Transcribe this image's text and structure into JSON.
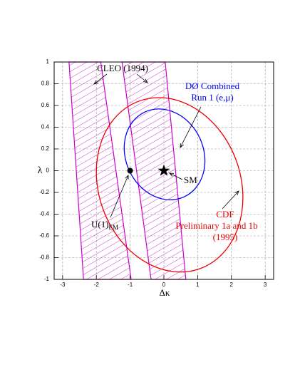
{
  "chart_data": {
    "type": "contour",
    "xlabel": "Δκ",
    "ylabel": "λ",
    "xlim": [
      -3.25,
      3.25
    ],
    "ylim": [
      -1,
      1
    ],
    "xticks": [
      -3,
      -2,
      -1,
      0,
      1,
      2,
      3
    ],
    "yticks": [
      -1,
      -0.8,
      -0.6,
      -0.4,
      -0.2,
      0,
      0.2,
      0.4,
      0.6,
      0.8,
      1
    ],
    "grid": true,
    "bands_label": "CLEO (1994)",
    "bands_color": "#cc00cc",
    "bands": [
      {
        "x_top": [
          -2.81,
          -1.87
        ],
        "x_bottom": [
          -2.38,
          -0.97
        ]
      },
      {
        "x_top": [
          -1.24,
          0.04
        ],
        "x_bottom": [
          -0.38,
          0.65
        ]
      }
    ],
    "ellipses": [
      {
        "labels": [
          "DØ Combined",
          "Run 1 (e,μ)"
        ],
        "color": "#0000ff",
        "center": [
          0.02,
          0.15
        ],
        "radii": [
          1.15,
          0.43
        ],
        "angle": -25
      },
      {
        "labels": [
          "CDF",
          "Preliminary 1a and 1b",
          "(1995)"
        ],
        "color": "#ee0000",
        "center": [
          0.17,
          -0.13
        ],
        "radii": [
          2.1,
          0.82
        ],
        "angle": -20
      }
    ],
    "points": [
      {
        "label": "SM",
        "x": 0,
        "y": 0,
        "marker": "star"
      },
      {
        "label": "U(1)",
        "label_sub": "EM",
        "x": -1,
        "y": 0,
        "marker": "circle"
      }
    ]
  }
}
